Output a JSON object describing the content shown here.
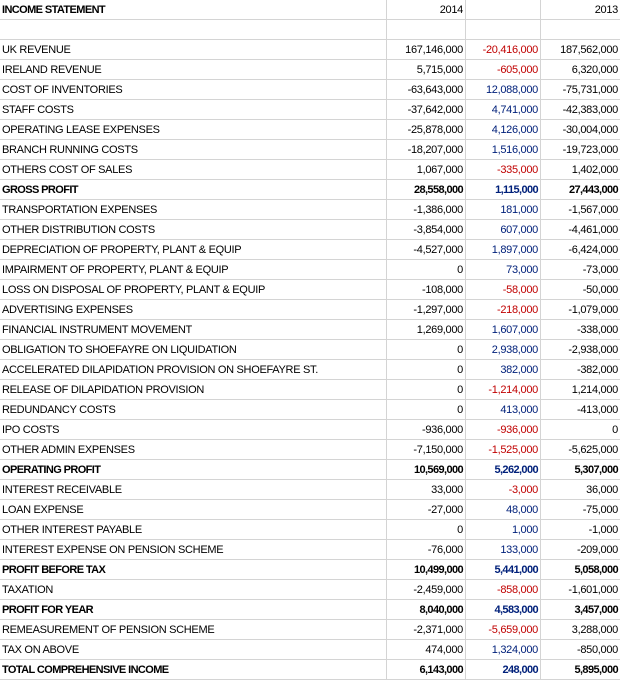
{
  "table": {
    "header": {
      "title": "INCOME STATEMENT",
      "years": [
        "2014",
        "2013"
      ]
    },
    "rows": [
      {
        "cells": [
          "UK REVENUE",
          "167,146,000",
          "-20,416,000",
          "187,562,000"
        ]
      },
      {
        "cells": [
          "IRELAND REVENUE",
          "5,715,000",
          "-605,000",
          "6,320,000"
        ]
      },
      {
        "cells": [
          "COST OF INVENTORIES",
          "-63,643,000",
          "12,088,000",
          "-75,731,000"
        ]
      },
      {
        "cells": [
          "STAFF COSTS",
          "-37,642,000",
          "4,741,000",
          "-42,383,000"
        ]
      },
      {
        "cells": [
          "OPERATING LEASE EXPENSES",
          "-25,878,000",
          "4,126,000",
          "-30,004,000"
        ]
      },
      {
        "cells": [
          "BRANCH RUNNING COSTS",
          "-18,207,000",
          "1,516,000",
          "-19,723,000"
        ]
      },
      {
        "cells": [
          "OTHERS COST OF SALES",
          "1,067,000",
          "-335,000",
          "1,402,000"
        ]
      },
      {
        "cells": [
          "GROSS PROFIT",
          "28,558,000",
          "1,115,000",
          "27,443,000"
        ],
        "bold": true
      },
      {
        "cells": [
          "TRANSPORTATION EXPENSES",
          "-1,386,000",
          "181,000",
          "-1,567,000"
        ]
      },
      {
        "cells": [
          "OTHER DISTRIBUTION COSTS",
          "-3,854,000",
          "607,000",
          "-4,461,000"
        ]
      },
      {
        "cells": [
          "DEPRECIATION OF PROPERTY, PLANT & EQUIP",
          "-4,527,000",
          "1,897,000",
          "-6,424,000"
        ]
      },
      {
        "cells": [
          "IMPAIRMENT OF PROPERTY, PLANT & EQUIP",
          "0",
          "73,000",
          "-73,000"
        ]
      },
      {
        "cells": [
          "LOSS ON DISPOSAL OF PROPERTY, PLANT & EQUIP",
          "-108,000",
          "-58,000",
          "-50,000"
        ]
      },
      {
        "cells": [
          "ADVERTISING EXPENSES",
          "-1,297,000",
          "-218,000",
          "-1,079,000"
        ]
      },
      {
        "cells": [
          "FINANCIAL INSTRUMENT MOVEMENT",
          "1,269,000",
          "1,607,000",
          "-338,000"
        ]
      },
      {
        "cells": [
          "OBLIGATION TO SHOEFAYRE ON LIQUIDATION",
          "0",
          "2,938,000",
          "-2,938,000"
        ]
      },
      {
        "cells": [
          "ACCELERATED DILAPIDATION PROVISION ON SHOEFAYRE ST.",
          "0",
          "382,000",
          "-382,000"
        ]
      },
      {
        "cells": [
          "RELEASE OF DILAPIDATION PROVISION",
          "0",
          "-1,214,000",
          "1,214,000"
        ]
      },
      {
        "cells": [
          "REDUNDANCY COSTS",
          "0",
          "413,000",
          "-413,000"
        ]
      },
      {
        "cells": [
          "IPO COSTS",
          "-936,000",
          "-936,000",
          "0"
        ]
      },
      {
        "cells": [
          "OTHER ADMIN EXPENSES",
          "-7,150,000",
          "-1,525,000",
          "-5,625,000"
        ]
      },
      {
        "cells": [
          "OPERATING PROFIT",
          "10,569,000",
          "5,262,000",
          "5,307,000"
        ],
        "bold": true
      },
      {
        "cells": [
          "INTEREST RECEIVABLE",
          "33,000",
          "-3,000",
          "36,000"
        ]
      },
      {
        "cells": [
          "LOAN EXPENSE",
          "-27,000",
          "48,000",
          "-75,000"
        ]
      },
      {
        "cells": [
          "OTHER INTEREST PAYABLE",
          "0",
          "1,000",
          "-1,000"
        ]
      },
      {
        "cells": [
          "INTEREST EXPENSE ON PENSION SCHEME",
          "-76,000",
          "133,000",
          "-209,000"
        ]
      },
      {
        "cells": [
          "PROFIT BEFORE TAX",
          "10,499,000",
          "5,441,000",
          "5,058,000"
        ],
        "bold": true
      },
      {
        "cells": [
          "TAXATION",
          "-2,459,000",
          "-858,000",
          "-1,601,000"
        ]
      },
      {
        "cells": [
          "PROFIT FOR YEAR",
          "8,040,000",
          "4,583,000",
          "3,457,000"
        ],
        "bold": true
      },
      {
        "cells": [
          "REMEASUREMENT OF PENSION SCHEME",
          "-2,371,000",
          "-5,659,000",
          "3,288,000"
        ]
      },
      {
        "cells": [
          "TAX ON ABOVE",
          "474,000",
          "1,324,000",
          "-850,000"
        ]
      },
      {
        "cells": [
          "TOTAL COMPREHENSIVE INCOME",
          "6,143,000",
          "248,000",
          "5,895,000"
        ],
        "bold": true
      }
    ]
  }
}
